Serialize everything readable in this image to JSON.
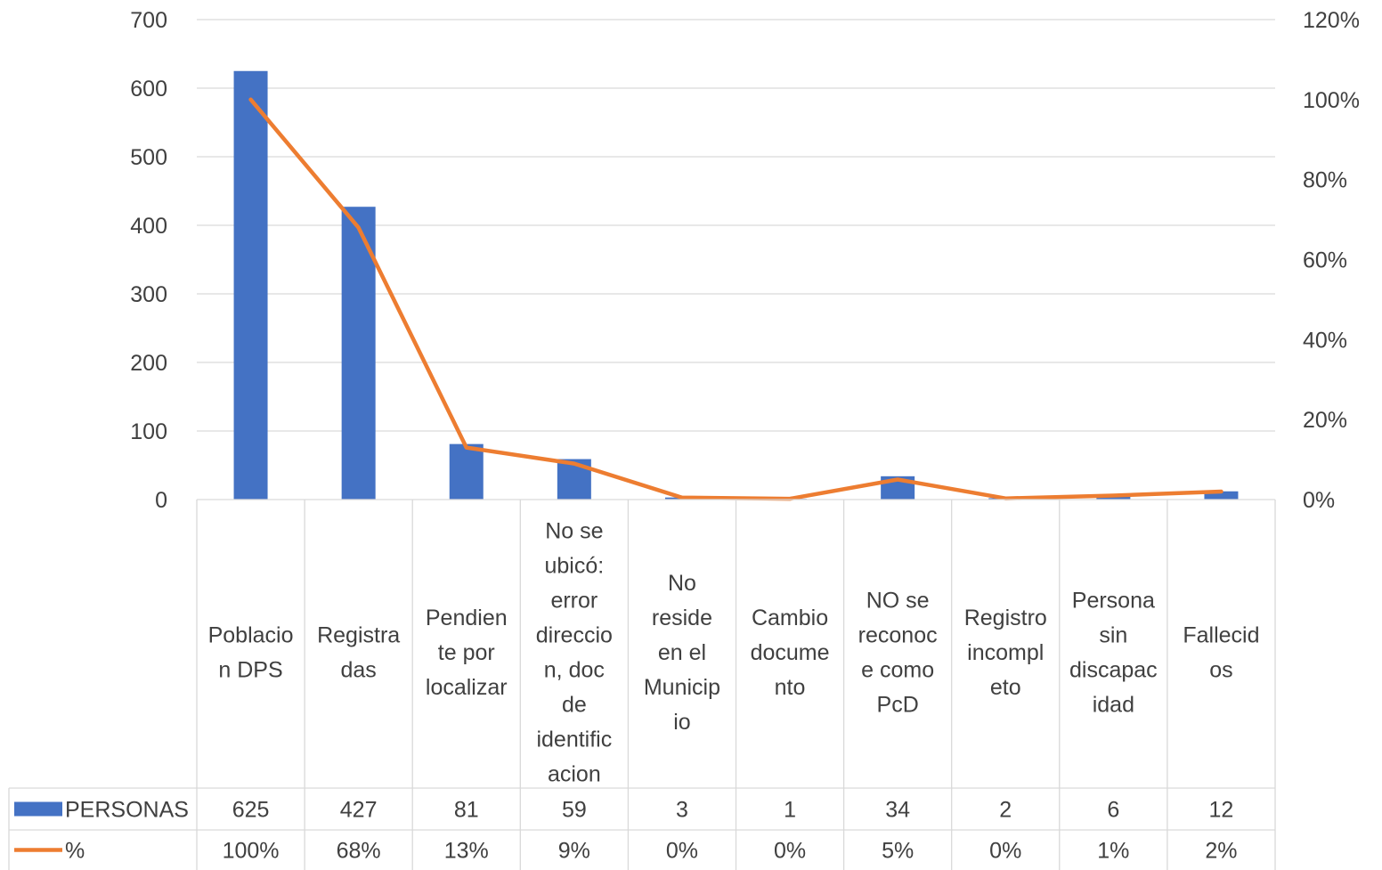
{
  "chart_data": {
    "type": "bar",
    "title": "",
    "categories": [
      [
        "Poblacio",
        "n DPS"
      ],
      [
        "Registra",
        "das"
      ],
      [
        "Pendien",
        "te por",
        "localizar"
      ],
      [
        "No se",
        "ubicó:",
        "error",
        "direccio",
        "n, doc",
        "de",
        "identific",
        "acion"
      ],
      [
        "No",
        "reside",
        "en el",
        "Municip",
        "io"
      ],
      [
        "Cambio",
        "docume",
        "nto"
      ],
      [
        "NO se",
        "reconoc",
        "e como",
        "PcD"
      ],
      [
        "Registro",
        "incompl",
        "eto"
      ],
      [
        "Persona",
        "sin",
        "discapac",
        "idad"
      ],
      [
        "Fallecid",
        "os"
      ]
    ],
    "series": [
      {
        "name": "PERSONAS",
        "type": "bar",
        "axis": "left",
        "color": "#4472C4",
        "values": [
          625,
          427,
          81,
          59,
          3,
          1,
          34,
          2,
          6,
          12
        ],
        "labels": [
          "625",
          "427",
          "81",
          "59",
          "3",
          "1",
          "34",
          "2",
          "6",
          "12"
        ]
      },
      {
        "name": "%",
        "type": "line",
        "axis": "right",
        "color": "#ED7D31",
        "values": [
          100,
          68,
          13,
          9,
          0.5,
          0.2,
          5,
          0.3,
          1,
          2
        ],
        "labels": [
          "100%",
          "68%",
          "13%",
          "9%",
          "0%",
          "0%",
          "5%",
          "0%",
          "1%",
          "2%"
        ]
      }
    ],
    "y_left": {
      "min": 0,
      "max": 700,
      "ticks": [
        "0",
        "100",
        "200",
        "300",
        "400",
        "500",
        "600",
        "700"
      ]
    },
    "y_right": {
      "min": 0,
      "max": 120,
      "ticks": [
        "0%",
        "20%",
        "40%",
        "60%",
        "80%",
        "100%",
        "120%"
      ]
    },
    "grid": true,
    "data_table": true
  }
}
